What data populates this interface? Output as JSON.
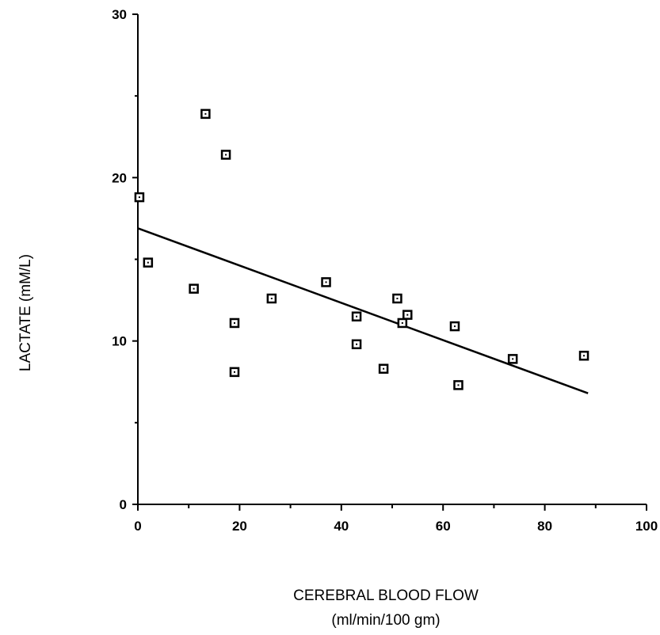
{
  "chart_data": {
    "type": "scatter",
    "title": "",
    "xlabel": "CEREBRAL BLOOD FLOW",
    "xlabel_units": "(ml/min/100 gm)",
    "ylabel": "LACTATE (mM/L)",
    "xlim": [
      0,
      100
    ],
    "ylim": [
      0,
      30
    ],
    "x_ticks": [
      "0",
      "20",
      "40",
      "60",
      "80",
      "100"
    ],
    "y_ticks": [
      "0",
      "10",
      "20",
      "30"
    ],
    "grid": false,
    "legend": "none",
    "marker": "hollow-square",
    "points": [
      {
        "x": 0.3,
        "y": 18.8
      },
      {
        "x": 2.0,
        "y": 14.8
      },
      {
        "x": 11.0,
        "y": 13.2
      },
      {
        "x": 13.3,
        "y": 23.9
      },
      {
        "x": 17.3,
        "y": 21.4
      },
      {
        "x": 19.0,
        "y": 11.1
      },
      {
        "x": 19.0,
        "y": 8.1
      },
      {
        "x": 26.3,
        "y": 12.6
      },
      {
        "x": 37.0,
        "y": 13.6
      },
      {
        "x": 43.0,
        "y": 11.5
      },
      {
        "x": 43.0,
        "y": 9.8
      },
      {
        "x": 48.3,
        "y": 8.3
      },
      {
        "x": 51.0,
        "y": 12.6
      },
      {
        "x": 52.0,
        "y": 11.1
      },
      {
        "x": 53.0,
        "y": 11.6
      },
      {
        "x": 62.3,
        "y": 10.9
      },
      {
        "x": 63.0,
        "y": 7.3
      },
      {
        "x": 73.7,
        "y": 8.9
      },
      {
        "x": 87.7,
        "y": 9.1
      }
    ],
    "fit_line": {
      "x": [
        0,
        88.5
      ],
      "y": [
        16.9,
        6.8
      ]
    },
    "colors": {
      "ink": "#000000",
      "background": "#ffffff"
    }
  }
}
